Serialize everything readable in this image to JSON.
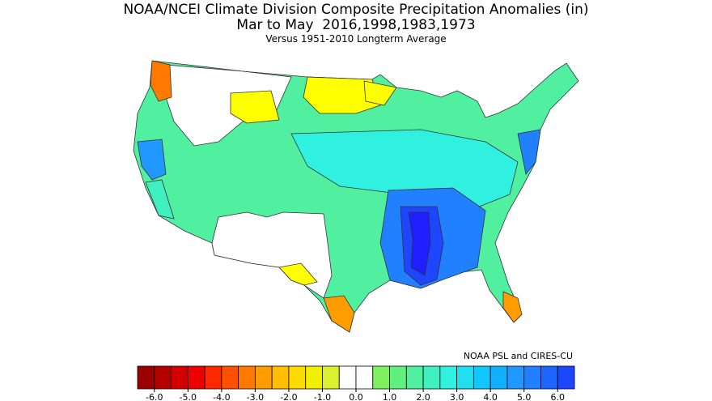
{
  "header": {
    "title": "NOAA/NCEI Climate Division Composite Precipitation Anomalies (in)",
    "subtitle": "Mar to May  2016,1998,1983,1973",
    "note": "Versus 1951-2010 Longterm Average"
  },
  "credit": "NOAA PSL and CIRES-CU",
  "colorbar": {
    "xlim": [
      -6.5,
      6.5
    ],
    "colors": [
      "#9b0000",
      "#b40000",
      "#d20000",
      "#ee0000",
      "#ff2800",
      "#ff5000",
      "#ff7800",
      "#ff9c00",
      "#ffbe00",
      "#ffdc00",
      "#f0f000",
      "#dcf032",
      "#ffffff",
      "#ffffff",
      "#80f060",
      "#60f080",
      "#50f0a0",
      "#40f0c0",
      "#30f0e0",
      "#20e0f0",
      "#10c8ff",
      "#10b0ff",
      "#2098ff",
      "#2080ff",
      "#1e64ff",
      "#1e46ff"
    ],
    "ticks": [
      {
        "value": -6,
        "label": "-6.0"
      },
      {
        "value": -5,
        "label": "-5.0"
      },
      {
        "value": -4,
        "label": "-4.0"
      },
      {
        "value": -3,
        "label": "-3.0"
      },
      {
        "value": -2,
        "label": "-2.0"
      },
      {
        "value": -1,
        "label": "-1.0"
      },
      {
        "value": 0,
        "label": "0.0"
      },
      {
        "value": 1,
        "label": "1.0"
      },
      {
        "value": 2,
        "label": "2.0"
      },
      {
        "value": 3,
        "label": "3.0"
      },
      {
        "value": 4,
        "label": "4.0"
      },
      {
        "value": 5,
        "label": "5.0"
      },
      {
        "value": 6,
        "label": "6.0"
      }
    ]
  }
}
